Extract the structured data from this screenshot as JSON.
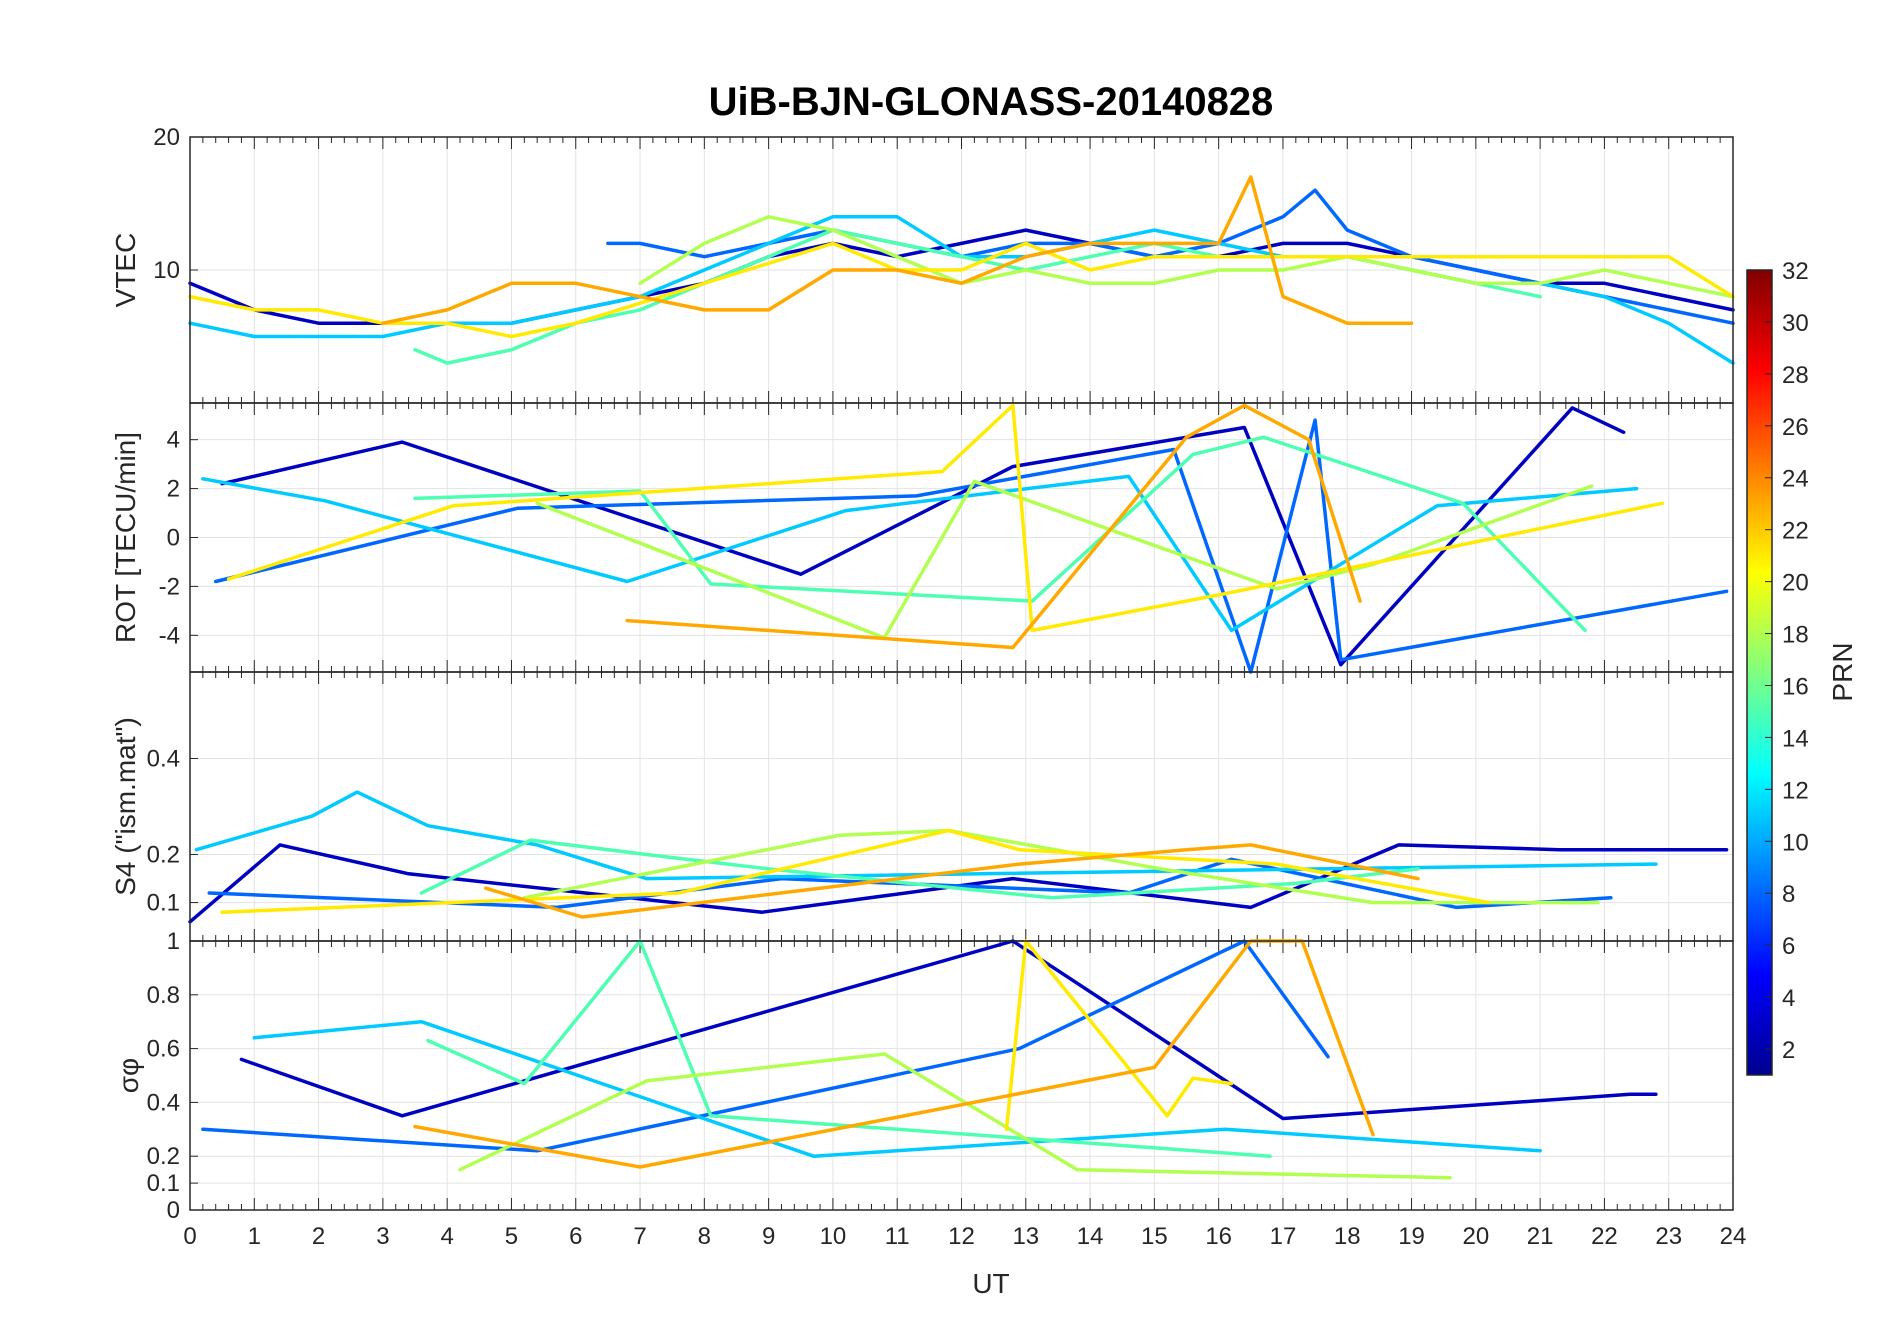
{
  "chart_data": {
    "type": "line",
    "title": "UiB-BJN-GLONASS-20140828",
    "xlabel": "UT",
    "xlim": [
      0,
      24
    ],
    "xticks": [
      "0",
      "1",
      "2",
      "3",
      "4",
      "5",
      "6",
      "7",
      "8",
      "9",
      "10",
      "11",
      "12",
      "13",
      "14",
      "15",
      "16",
      "17",
      "18",
      "19",
      "20",
      "21",
      "22",
      "23",
      "24"
    ],
    "grid": true,
    "colorbar": {
      "label": "PRN",
      "range": [
        1,
        32
      ],
      "ticks": [
        "2",
        "4",
        "6",
        "8",
        "10",
        "12",
        "14",
        "16",
        "18",
        "20",
        "22",
        "24",
        "26",
        "28",
        "30",
        "32"
      ],
      "colormap": "jet"
    },
    "panels": [
      {
        "name": "vtec",
        "ylabel": "VTEC",
        "ylim": [
          0,
          20
        ],
        "yticks": [
          "10",
          "20"
        ],
        "series": [
          {
            "prn": 3,
            "x": [
              0,
              1,
              2,
              3,
              4,
              5,
              6,
              7,
              8,
              9,
              10,
              11,
              12,
              13,
              14,
              15,
              16,
              17,
              18,
              19,
              20,
              21,
              22,
              23,
              24
            ],
            "values": [
              9,
              7,
              6,
              6,
              6,
              6,
              7,
              8,
              9,
              11,
              12,
              11,
              12,
              13,
              12,
              11,
              11,
              12,
              12,
              11,
              10,
              9,
              9,
              8,
              7
            ]
          },
          {
            "prn": 8,
            "x": [
              6.5,
              7,
              8,
              9,
              10,
              11,
              12,
              13,
              14,
              15,
              16,
              17,
              17.5,
              18,
              19,
              20,
              21,
              22,
              23,
              24
            ],
            "values": [
              12,
              12,
              11,
              12,
              13,
              12,
              11,
              12,
              12,
              11,
              12,
              14,
              16,
              13,
              11,
              10,
              9,
              8,
              7,
              6
            ]
          },
          {
            "prn": 11,
            "x": [
              0,
              1,
              2,
              3,
              4,
              5,
              6,
              7,
              8,
              9,
              10,
              11,
              12,
              13,
              14,
              15,
              16,
              17,
              18,
              19,
              20,
              21,
              22,
              23,
              24
            ],
            "values": [
              6,
              5,
              5,
              5,
              6,
              6,
              7,
              8,
              10,
              12,
              14,
              14,
              11,
              11,
              12,
              13,
              12,
              11,
              11,
              10,
              9,
              9,
              8,
              6,
              3
            ]
          },
          {
            "prn": 15,
            "x": [
              3.5,
              4,
              5,
              6,
              7,
              8,
              9,
              10,
              11,
              12,
              13,
              14,
              15,
              16,
              17,
              18,
              19,
              20,
              21
            ],
            "values": [
              4,
              3,
              4,
              6,
              7,
              9,
              11,
              13,
              12,
              11,
              10,
              11,
              12,
              11,
              11,
              11,
              10,
              9,
              8
            ]
          },
          {
            "prn": 18,
            "x": [
              7,
              8,
              9,
              10,
              11,
              12,
              13,
              14,
              15,
              16,
              17,
              18,
              19,
              20,
              21,
              22,
              23,
              24
            ],
            "values": [
              9,
              12,
              14,
              13,
              11,
              9,
              10,
              9,
              9,
              10,
              10,
              11,
              10,
              9,
              9,
              10,
              9,
              8
            ]
          },
          {
            "prn": 21,
            "x": [
              0,
              1,
              2,
              3,
              4,
              5,
              6,
              10,
              11,
              12,
              13,
              14,
              15,
              16,
              17,
              22.5,
              23,
              24
            ],
            "values": [
              8,
              7,
              7,
              6,
              6,
              5,
              6,
              12,
              10,
              10,
              12,
              10,
              11,
              11,
              11,
              11,
              11,
              8
            ]
          },
          {
            "prn": 23,
            "x": [
              3,
              4,
              5,
              6,
              7,
              8,
              9,
              10,
              11,
              12,
              13,
              14,
              15,
              16,
              16.5,
              17,
              18,
              19
            ],
            "values": [
              6,
              7,
              9,
              9,
              8,
              7,
              7,
              10,
              10,
              9,
              11,
              12,
              12,
              12,
              17,
              8,
              6,
              6
            ]
          }
        ]
      },
      {
        "name": "rot",
        "ylabel": "ROT [TECU/min]",
        "ylim": [
          -5.5,
          5.5
        ],
        "yticks": [
          "-4",
          "-2",
          "0",
          "2",
          "4"
        ],
        "series": [
          {
            "prn": 3,
            "x": [
              0.5,
              3.3,
              9.5,
              12.8,
              16.4,
              17.9,
              21.5,
              22.3
            ],
            "values": [
              2.2,
              3.9,
              -1.5,
              2.9,
              4.5,
              -5.2,
              5.3,
              4.3
            ]
          },
          {
            "prn": 8,
            "x": [
              0.4,
              5.1,
              11.3,
              15.3,
              16.5,
              17.5,
              17.9,
              23.9
            ],
            "values": [
              -1.8,
              1.2,
              1.7,
              3.6,
              -5.5,
              4.8,
              -5.0,
              -2.2
            ]
          },
          {
            "prn": 11,
            "x": [
              0.2,
              2.1,
              6.8,
              10.2,
              14.6,
              16.2,
              19.4,
              22.5
            ],
            "values": [
              2.4,
              1.5,
              -1.8,
              1.1,
              2.5,
              -3.8,
              1.3,
              2.0
            ]
          },
          {
            "prn": 15,
            "x": [
              3.5,
              7.0,
              8.1,
              13.1,
              15.6,
              16.7,
              19.8,
              21.7
            ],
            "values": [
              1.6,
              1.9,
              -1.9,
              -2.6,
              3.4,
              4.1,
              1.4,
              -3.8
            ]
          },
          {
            "prn": 18,
            "x": [
              5.4,
              10.8,
              12.2,
              16.9,
              18.4,
              21.8
            ],
            "values": [
              1.4,
              -4.1,
              2.3,
              -2.1,
              -1.1,
              2.1
            ]
          },
          {
            "prn": 21,
            "x": [
              0.6,
              4.1,
              11.7,
              12.8,
              13.1,
              16.1,
              22.9
            ],
            "values": [
              -1.7,
              1.3,
              2.7,
              5.4,
              -3.8,
              -2.3,
              1.4
            ]
          },
          {
            "prn": 23,
            "x": [
              6.8,
              12.8,
              15.5,
              16.4,
              17.4,
              18.2
            ],
            "values": [
              -3.4,
              -4.5,
              4.1,
              5.4,
              4.0,
              -2.6
            ]
          }
        ]
      },
      {
        "name": "s4",
        "ylabel": "S4 (\"ism.mat\")",
        "ylim": [
          0.02,
          0.58
        ],
        "yticks": [
          "0.1",
          "0.2",
          "0.4"
        ],
        "series": [
          {
            "prn": 3,
            "x": [
              0,
              1.4,
              3.4,
              8.9,
              12.8,
              16.5,
              18.8,
              21.3,
              23.9
            ],
            "values": [
              0.06,
              0.22,
              0.16,
              0.08,
              0.15,
              0.09,
              0.22,
              0.21,
              0.21
            ]
          },
          {
            "prn": 8,
            "x": [
              0.3,
              5.7,
              9.2,
              14.6,
              16.2,
              19.7,
              22.1
            ],
            "values": [
              0.12,
              0.09,
              0.15,
              0.12,
              0.19,
              0.09,
              0.11
            ]
          },
          {
            "prn": 11,
            "x": [
              0.1,
              1.9,
              2.6,
              3.7,
              5.4,
              7.1,
              22.8
            ],
            "values": [
              0.21,
              0.28,
              0.33,
              0.26,
              0.22,
              0.15,
              0.18
            ]
          },
          {
            "prn": 15,
            "x": [
              3.6,
              5.3,
              7.1,
              9.0,
              13.4,
              17.2,
              19.1
            ],
            "values": [
              0.12,
              0.23,
              0.2,
              0.17,
              0.11,
              0.14,
              0.17
            ]
          },
          {
            "prn": 18,
            "x": [
              5.2,
              10.1,
              11.8,
              15.1,
              18.4,
              21.9
            ],
            "values": [
              0.11,
              0.24,
              0.25,
              0.17,
              0.1,
              0.1
            ]
          },
          {
            "prn": 21,
            "x": [
              0.5,
              7.6,
              11.8,
              12.9,
              16.9,
              20.2
            ],
            "values": [
              0.08,
              0.12,
              0.25,
              0.21,
              0.18,
              0.1
            ]
          },
          {
            "prn": 23,
            "x": [
              4.6,
              6.1,
              12.9,
              15.5,
              16.5,
              19.1
            ],
            "values": [
              0.13,
              0.07,
              0.18,
              0.21,
              0.22,
              0.15
            ]
          }
        ]
      },
      {
        "name": "sigma_phi",
        "ylabel": "σφ",
        "ylim": [
          0,
          1
        ],
        "yticks": [
          "0",
          "0.1",
          "0.2",
          "0.4",
          "0.6",
          "0.8",
          "1"
        ],
        "series": [
          {
            "prn": 3,
            "x": [
              0.8,
              3.3,
              12.8,
              17.0,
              22.4,
              22.8
            ],
            "values": [
              0.56,
              0.35,
              1.0,
              0.34,
              0.43,
              0.43
            ]
          },
          {
            "prn": 8,
            "x": [
              0.2,
              5.4,
              12.9,
              16.4,
              17.7
            ],
            "values": [
              0.3,
              0.22,
              0.6,
              1.0,
              0.57
            ]
          },
          {
            "prn": 11,
            "x": [
              1.0,
              3.6,
              9.7,
              16.1,
              21.0
            ],
            "values": [
              0.64,
              0.7,
              0.2,
              0.3,
              0.22
            ]
          },
          {
            "prn": 15,
            "x": [
              3.7,
              5.2,
              7.0,
              8.1,
              16.8
            ],
            "values": [
              0.63,
              0.47,
              1.0,
              0.35,
              0.2
            ]
          },
          {
            "prn": 18,
            "x": [
              4.2,
              7.1,
              10.8,
              13.8,
              19.6
            ],
            "values": [
              0.15,
              0.48,
              0.58,
              0.15,
              0.12
            ]
          },
          {
            "prn": 21,
            "x": [
              12.7,
              13.0,
              15.2,
              15.6,
              16.2
            ],
            "values": [
              0.3,
              1.0,
              0.35,
              0.49,
              0.47
            ]
          },
          {
            "prn": 23,
            "x": [
              3.5,
              7.0,
              15.0,
              16.5,
              17.3,
              18.4
            ],
            "values": [
              0.31,
              0.16,
              0.53,
              1.0,
              1.0,
              0.28
            ]
          }
        ]
      }
    ]
  }
}
